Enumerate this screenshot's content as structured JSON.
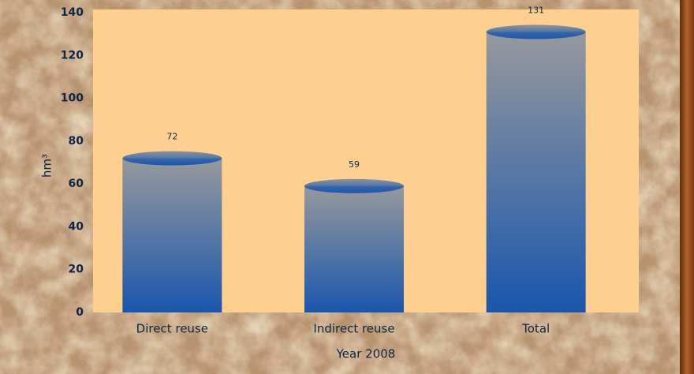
{
  "chart_data": {
    "type": "bar",
    "categories": [
      "Direct reuse",
      "Indirect reuse",
      "Total"
    ],
    "values": [
      72,
      59,
      131
    ],
    "x_label": "Year 2008",
    "y_label": "hm³",
    "ylim": [
      0,
      140
    ],
    "yticks": [
      0,
      20,
      40,
      60,
      80,
      100,
      120,
      140
    ],
    "color": "#1a56ad",
    "plot_background": "#fdd08f"
  }
}
